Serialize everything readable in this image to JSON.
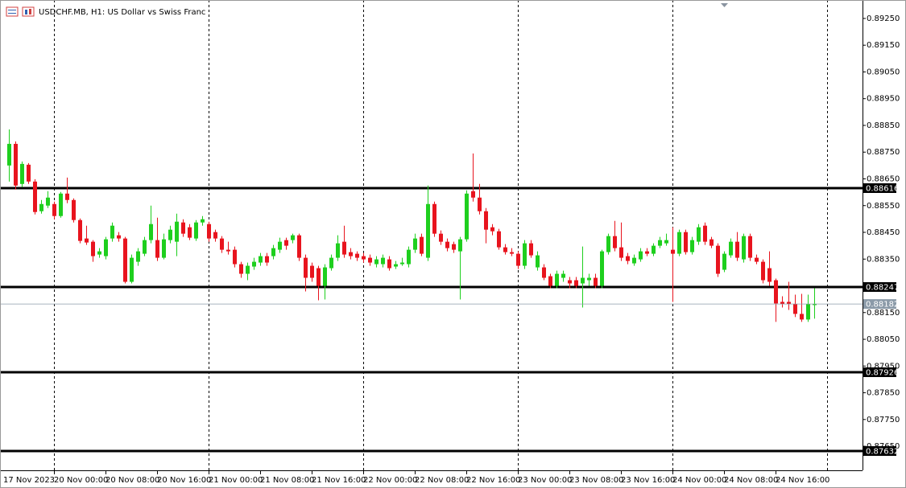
{
  "chart_data": {
    "type": "candlestick",
    "title": "USDCHF.MB, H1:  US Dollar vs Swiss Franc",
    "categories": [
      "17 Nov 2023",
      null,
      null,
      null,
      null,
      null,
      null,
      "20 Nov 00:00",
      null,
      null,
      null,
      null,
      null,
      null,
      null,
      "20 Nov 08:00",
      null,
      null,
      null,
      null,
      null,
      null,
      null,
      "20 Nov 16:00",
      null,
      null,
      null,
      null,
      null,
      null,
      null,
      "21 Nov 00:00",
      null,
      null,
      null,
      null,
      null,
      null,
      null,
      "21 Nov 08:00",
      null,
      null,
      null,
      null,
      null,
      null,
      null,
      "21 Nov 16:00",
      null,
      null,
      null,
      null,
      null,
      null,
      null,
      "22 Nov 00:00",
      null,
      null,
      null,
      null,
      null,
      null,
      null,
      "22 Nov 08:00",
      null,
      null,
      null,
      null,
      null,
      null,
      null,
      "22 Nov 16:00",
      null,
      null,
      null,
      null,
      null,
      null,
      null,
      "23 Nov 00:00",
      null,
      null,
      null,
      null,
      null,
      null,
      null,
      "23 Nov 08:00",
      null,
      null,
      null,
      null,
      null,
      null,
      null,
      "23 Nov 16:00",
      null,
      null,
      null,
      null,
      null,
      null,
      null,
      "24 Nov 00:00",
      null,
      null,
      null,
      null,
      null,
      null,
      null,
      "24 Nov 08:00",
      null,
      null,
      null,
      null,
      null,
      null,
      null,
      "24 Nov 16:00",
      null,
      null,
      null,
      null,
      null,
      null
    ],
    "open": [
      0.887,
      0.88781,
      0.88631,
      0.88703,
      0.8864,
      0.88529,
      0.8855,
      0.88556,
      0.88511,
      0.88595,
      0.88571,
      0.88496,
      0.88427,
      0.88415,
      0.88367,
      0.88361,
      0.88427,
      0.88439,
      0.88427,
      0.88265,
      0.8834,
      0.8837,
      0.88421,
      0.88421,
      0.88355,
      0.88421,
      0.88415,
      0.88487,
      0.88469,
      0.88427,
      0.88487,
      0.88481,
      0.88451,
      0.88427,
      0.88385,
      0.88385,
      0.88331,
      0.88295,
      0.88322,
      0.88337,
      0.88361,
      0.88361,
      0.88385,
      0.88421,
      0.88421,
      0.88439,
      0.88355,
      0.88325,
      0.88316,
      0.8825,
      0.88316,
      0.88355,
      0.88415,
      0.88376,
      0.8837,
      0.88361,
      0.88355,
      0.88331,
      0.88331,
      0.88349,
      0.88322,
      0.88331,
      0.88331,
      0.88385,
      0.88433,
      0.88355,
      0.88556,
      0.88445,
      0.88415,
      0.88406,
      0.88379,
      0.88424,
      0.88604,
      0.8858,
      0.88529,
      0.88469,
      0.88454,
      0.88394,
      0.88376,
      0.8837,
      0.88325,
      0.88409,
      0.88319,
      0.88319,
      0.88286,
      0.8825,
      0.8828,
      0.88271,
      0.88271,
      0.88259,
      0.88271,
      0.8828,
      0.8825,
      0.88376,
      0.88436,
      0.88394,
      0.88361,
      0.88334,
      0.88349,
      0.88379,
      0.8837,
      0.884,
      0.88409,
      0.88385,
      0.8837,
      0.88451,
      0.88376,
      0.88415,
      0.88475,
      0.88424,
      0.884,
      0.8831,
      0.88364,
      0.88415,
      0.88349,
      0.88436,
      0.88355,
      0.8834,
      0.88316,
      0.88271,
      0.8819,
      0.8819,
      0.88181,
      0.88145,
      0.88124,
      0.88178
    ],
    "high": [
      0.88835,
      0.8879,
      0.88715,
      0.88709,
      0.88649,
      0.88571,
      0.88604,
      0.88565,
      0.88601,
      0.88655,
      0.88577,
      0.88502,
      0.88475,
      0.88421,
      0.88391,
      0.88433,
      0.88487,
      0.88451,
      0.88433,
      0.88367,
      0.88391,
      0.88433,
      0.8855,
      0.88505,
      0.88445,
      0.88475,
      0.8852,
      0.88499,
      0.88481,
      0.88496,
      0.88511,
      0.8849,
      0.8846,
      0.88436,
      0.88415,
      0.88397,
      0.8834,
      0.88337,
      0.88355,
      0.88373,
      0.88373,
      0.88403,
      0.8843,
      0.8843,
      0.88445,
      0.88445,
      0.88367,
      0.88337,
      0.88325,
      0.88331,
      0.88367,
      0.88439,
      0.88475,
      0.88391,
      0.88379,
      0.88373,
      0.88367,
      0.88361,
      0.88367,
      0.88361,
      0.88343,
      0.88355,
      0.88397,
      0.88445,
      0.88445,
      0.88625,
      0.88565,
      0.88457,
      0.88427,
      0.88415,
      0.88433,
      0.88607,
      0.88745,
      0.88631,
      0.88541,
      0.88481,
      0.88463,
      0.88406,
      0.88391,
      0.88379,
      0.88421,
      0.88421,
      0.88379,
      0.88331,
      0.88295,
      0.88307,
      0.88307,
      0.88283,
      0.88283,
      0.88397,
      0.88295,
      0.88295,
      0.88385,
      0.88445,
      0.88493,
      0.88487,
      0.88373,
      0.88367,
      0.88391,
      0.88391,
      0.88409,
      0.88433,
      0.88445,
      0.88469,
      0.8846,
      0.8846,
      0.88433,
      0.88481,
      0.88487,
      0.88433,
      0.88409,
      0.88379,
      0.88427,
      0.88451,
      0.88445,
      0.88445,
      0.88367,
      0.88349,
      0.88379,
      0.88277,
      0.88211,
      0.88265,
      0.88217,
      0.8822,
      0.88217,
      0.88241
    ],
    "low": [
      0.8864,
      0.8861,
      0.88619,
      0.88631,
      0.88517,
      0.8852,
      0.88541,
      0.88499,
      0.88505,
      0.88559,
      0.88487,
      0.88409,
      0.88403,
      0.8834,
      0.88355,
      0.88349,
      0.88415,
      0.88415,
      0.88259,
      0.88259,
      0.88325,
      0.88361,
      0.88409,
      0.88343,
      0.88349,
      0.88409,
      0.88361,
      0.88433,
      0.88421,
      0.88418,
      0.88475,
      0.88415,
      0.88415,
      0.88373,
      0.88367,
      0.88319,
      0.8828,
      0.88271,
      0.8831,
      0.88325,
      0.88325,
      0.88349,
      0.88373,
      0.88385,
      0.88409,
      0.88343,
      0.88229,
      0.88265,
      0.88196,
      0.88199,
      0.88307,
      0.88343,
      0.88355,
      0.88349,
      0.88343,
      0.88337,
      0.88325,
      0.88319,
      0.88319,
      0.88307,
      0.88313,
      0.88325,
      0.88319,
      0.88373,
      0.88361,
      0.88343,
      0.88433,
      0.88403,
      0.88379,
      0.88373,
      0.88199,
      0.88415,
      0.88565,
      0.88517,
      0.88409,
      0.88439,
      0.88385,
      0.88367,
      0.88361,
      0.88313,
      0.88313,
      0.88355,
      0.88307,
      0.88271,
      0.88241,
      0.88241,
      0.88265,
      0.88241,
      0.88241,
      0.88169,
      0.8825,
      0.88241,
      0.88241,
      0.88367,
      0.88379,
      0.88343,
      0.88331,
      0.88325,
      0.8834,
      0.88361,
      0.88361,
      0.88391,
      0.884,
      0.8819,
      0.88361,
      0.88367,
      0.88367,
      0.88403,
      0.88403,
      0.88391,
      0.88283,
      0.88301,
      0.88355,
      0.88343,
      0.88337,
      0.88343,
      0.88331,
      0.88259,
      0.8825,
      0.88115,
      0.88169,
      0.8816,
      0.88133,
      0.88115,
      0.88115,
      0.88127
    ],
    "close": [
      0.88781,
      0.88625,
      0.88706,
      0.8864,
      0.88526,
      0.88556,
      0.8858,
      0.88511,
      0.88595,
      0.88571,
      0.88496,
      0.88418,
      0.88412,
      0.88361,
      0.88379,
      0.88424,
      0.88475,
      0.88427,
      0.88265,
      0.88355,
      0.88379,
      0.88421,
      0.88481,
      0.88355,
      0.88424,
      0.8846,
      0.8849,
      0.88445,
      0.8843,
      0.88487,
      0.88499,
      0.88427,
      0.88427,
      0.88385,
      0.88379,
      0.88331,
      0.88295,
      0.88325,
      0.8834,
      0.88361,
      0.88337,
      0.88391,
      0.88415,
      0.884,
      0.88439,
      0.88355,
      0.8828,
      0.8828,
      0.8825,
      0.88319,
      0.88355,
      0.88409,
      0.88367,
      0.88361,
      0.88355,
      0.88349,
      0.88337,
      0.88349,
      0.88355,
      0.88316,
      0.88331,
      0.88337,
      0.88385,
      0.88427,
      0.8837,
      0.88556,
      0.88445,
      0.88415,
      0.88391,
      0.88385,
      0.88424,
      0.88595,
      0.8858,
      0.88529,
      0.8846,
      0.88454,
      0.88394,
      0.88376,
      0.8837,
      0.88325,
      0.88409,
      0.88364,
      0.88364,
      0.8828,
      0.8825,
      0.88295,
      0.88295,
      0.88259,
      0.8825,
      0.8828,
      0.8828,
      0.8825,
      0.88379,
      0.88436,
      0.88391,
      0.88355,
      0.88343,
      0.88355,
      0.88379,
      0.8837,
      0.884,
      0.88421,
      0.88421,
      0.8837,
      0.88451,
      0.88376,
      0.88421,
      0.88469,
      0.88415,
      0.884,
      0.88295,
      0.8837,
      0.88415,
      0.88355,
      0.88436,
      0.88355,
      0.8834,
      0.88271,
      0.88265,
      0.88184,
      0.88181,
      0.88181,
      0.88145,
      0.88124,
      0.88181,
      0.88182
    ],
    "up_color": "#1ecf1e",
    "down_color": "#e8141e",
    "ylim": [
      0.8756,
      0.89319
    ],
    "yticks": [
      {
        "value": 0.8925,
        "label": "0.89250"
      },
      {
        "value": 0.8915,
        "label": "0.89150"
      },
      {
        "value": 0.8905,
        "label": "0.89050"
      },
      {
        "value": 0.8895,
        "label": "0.88950"
      },
      {
        "value": 0.8885,
        "label": "0.88850"
      },
      {
        "value": 0.8875,
        "label": "0.88750"
      },
      {
        "value": 0.8865,
        "label": "0.88650"
      },
      {
        "value": 0.8855,
        "label": "0.88550"
      },
      {
        "value": 0.8845,
        "label": "0.88450"
      },
      {
        "value": 0.8835,
        "label": "0.88350"
      },
      {
        "value": 0.8815,
        "label": "0.88150"
      },
      {
        "value": 0.8805,
        "label": "0.88050"
      },
      {
        "value": 0.8795,
        "label": "0.87950"
      },
      {
        "value": 0.8785,
        "label": "0.87850"
      },
      {
        "value": 0.8775,
        "label": "0.87750"
      },
      {
        "value": 0.8765,
        "label": "0.87650"
      }
    ],
    "levels": [
      0.88616,
      0.88247,
      0.87926,
      0.87632
    ],
    "level_color": "#000000",
    "current_price": 0.88182,
    "current_color": "#8b9aa8",
    "period_separators": true
  }
}
